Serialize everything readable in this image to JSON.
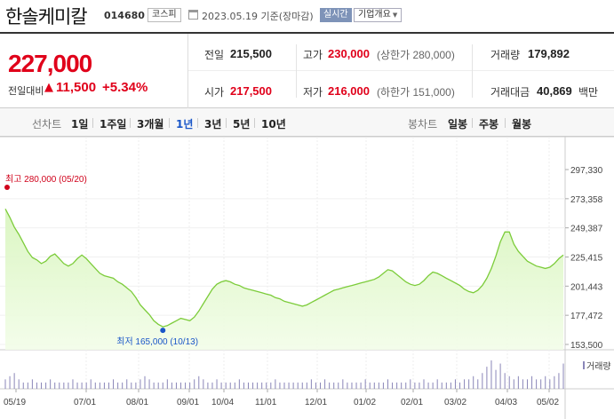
{
  "header": {
    "name": "한솔케미칼",
    "code": "014680",
    "market": "코스피",
    "date": "2023.05.19 기준(장마감)",
    "realtime": "실시간",
    "overview": "기업개요"
  },
  "summary": {
    "price": "227,000",
    "change_label": "전일대비",
    "change_arrow": "▲",
    "change_value": "11,500",
    "change_pct": "+5.34%",
    "prev_label": "전일",
    "prev_value": "215,500",
    "high_label": "고가",
    "high_value": "230,000",
    "upper_limit": "(상한가 280,000)",
    "volume_label": "거래량",
    "volume_value": "179,892",
    "open_label": "시가",
    "open_value": "217,500",
    "low_label": "저가",
    "low_value": "216,000",
    "lower_limit": "(하한가 151,000)",
    "amount_label": "거래대금",
    "amount_value": "40,869",
    "amount_unit": "백만"
  },
  "period_bar": {
    "line_label": "선차트",
    "line_items": [
      "1일",
      "1주일",
      "3개월",
      "1년",
      "3년",
      "5년",
      "10년"
    ],
    "active": "1년",
    "candle_label": "봉차트",
    "candle_items": [
      "일봉",
      "주봉",
      "월봉"
    ]
  },
  "colors": {
    "up": "#e0001a",
    "line": "#7ccc3a",
    "fill": "#e6f9d4",
    "high_marker": "#d0021b",
    "low_marker": "#1a56c8",
    "volume": "#8a86b8"
  },
  "chart_data": {
    "type": "area",
    "yticks": [
      "297,330",
      "273,358",
      "249,387",
      "225,415",
      "201,443",
      "177,472",
      "153,500"
    ],
    "ylim": [
      153500,
      297330
    ],
    "xticks": [
      "05/19",
      "07/01",
      "08/01",
      "09/01",
      "10/04",
      "11/01",
      "12/01",
      "01/02",
      "02/01",
      "03/02",
      "04/03",
      "05/02"
    ],
    "high_annotation": "최고 280,000 (05/20)",
    "low_annotation": "최저 165,000 (10/13)",
    "volume_label": "거래량",
    "series": [
      {
        "values": [
          265000,
          258000,
          250000,
          244000,
          237000,
          230000,
          225000,
          223000,
          220000,
          222000,
          226000,
          228000,
          224000,
          220000,
          218000,
          220000,
          224000,
          227000,
          224000,
          220000,
          216000,
          212000,
          210000,
          209000,
          208000,
          205000,
          203000,
          200000,
          197000,
          192000,
          186000,
          182000,
          178000,
          173000,
          170000,
          168000,
          169000,
          171000,
          173000,
          175000,
          174000,
          173000,
          176000,
          181000,
          187000,
          193000,
          199000,
          203000,
          205000,
          206000,
          205000,
          203000,
          202000,
          200000,
          199000,
          198000,
          197000,
          196000,
          195000,
          194000,
          192000,
          191000,
          189000,
          188000,
          187000,
          186000,
          185000,
          186000,
          188000,
          190000,
          192000,
          194000,
          196000,
          198000,
          199000,
          200000,
          201000,
          202000,
          203000,
          204000,
          205000,
          206000,
          207000,
          209000,
          212000,
          215000,
          214000,
          211000,
          208000,
          205000,
          203000,
          202000,
          203000,
          206000,
          210000,
          213000,
          212000,
          210000,
          208000,
          206000,
          204000,
          202000,
          199000,
          197000,
          196000,
          198000,
          202000,
          208000,
          216000,
          226000,
          238000,
          246000,
          246000,
          236000,
          230000,
          226000,
          222000,
          220000,
          218000,
          217000,
          216000,
          217000,
          220000,
          224000,
          227000
        ],
        "volume": [
          3,
          4,
          5,
          3,
          2,
          2,
          3,
          2,
          2,
          2,
          3,
          2,
          2,
          2,
          2,
          3,
          2,
          2,
          2,
          3,
          2,
          2,
          2,
          2,
          3,
          2,
          2,
          3,
          2,
          2,
          3,
          4,
          3,
          2,
          2,
          2,
          3,
          2,
          2,
          2,
          2,
          2,
          3,
          4,
          3,
          2,
          2,
          3,
          2,
          2,
          2,
          2,
          3,
          2,
          2,
          2,
          2,
          2,
          2,
          2,
          3,
          2,
          2,
          2,
          2,
          2,
          2,
          2,
          3,
          2,
          2,
          3,
          2,
          2,
          2,
          3,
          2,
          2,
          2,
          2,
          3,
          2,
          2,
          2,
          2,
          3,
          2,
          2,
          2,
          2,
          3,
          2,
          2,
          3,
          2,
          2,
          3,
          2,
          2,
          2,
          3,
          2,
          3,
          3,
          4,
          3,
          5,
          7,
          9,
          6,
          8,
          5,
          4,
          3,
          4,
          3,
          3,
          4,
          3,
          3,
          4,
          3,
          4,
          5,
          8
        ]
      }
    ]
  }
}
